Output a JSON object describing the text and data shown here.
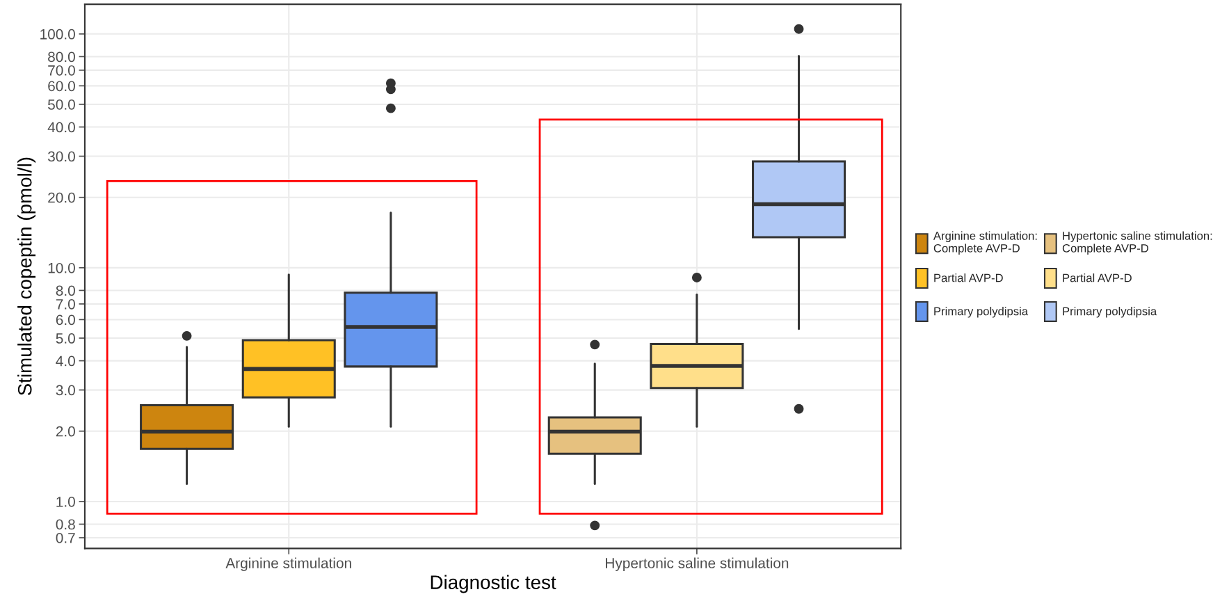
{
  "chart_data": {
    "type": "box",
    "xlabel": "Diagnostic test",
    "ylabel": "Stimulated copeptin (pmol/l)",
    "categories": [
      "Arginine stimulation",
      "Hypertonic saline stimulation"
    ],
    "log": true,
    "ylim": [
      0.63,
      134
    ],
    "yticks": [
      {
        "value": 0.7,
        "label": "0.7"
      },
      {
        "value": 0.8,
        "label": "0.8"
      },
      {
        "value": 1,
        "label": "1.0"
      },
      {
        "value": 2,
        "label": "2.0"
      },
      {
        "value": 3,
        "label": "3.0"
      },
      {
        "value": 4,
        "label": "4.0"
      },
      {
        "value": 5,
        "label": "5.0"
      },
      {
        "value": 6,
        "label": "6.0"
      },
      {
        "value": 7,
        "label": "7.0"
      },
      {
        "value": 8,
        "label": "8.0"
      },
      {
        "value": 10,
        "label": "10.0"
      },
      {
        "value": 20,
        "label": "20.0"
      },
      {
        "value": 30,
        "label": "30.0"
      },
      {
        "value": 40,
        "label": "40.0"
      },
      {
        "value": 50,
        "label": "50.0"
      },
      {
        "value": 60,
        "label": "60.0"
      },
      {
        "value": 70,
        "label": "70.0"
      },
      {
        "value": 80,
        "label": "80.0"
      },
      {
        "value": 100,
        "label": "100.0"
      }
    ],
    "grid": true,
    "legend": "right",
    "series": [
      {
        "name": "Arginine stimulation:\nComplete AVP-D",
        "color": "#cd850f",
        "boxes": [
          {
            "low": 1.19,
            "q1": 1.68,
            "median": 1.99,
            "q3": 2.58,
            "high": 4.58,
            "outliers": [
              5.11
            ]
          },
          null
        ]
      },
      {
        "name": "Partial AVP-D",
        "color": "#ffc125",
        "boxes": [
          {
            "low": 2.09,
            "q1": 2.79,
            "median": 3.69,
            "q3": 4.9,
            "high": 9.35
          },
          null
        ]
      },
      {
        "name": "Primary polydipsia",
        "color": "#6495ed",
        "boxes": [
          {
            "low": 2.09,
            "q1": 3.78,
            "median": 5.58,
            "q3": 7.82,
            "high": 17.2,
            "outliers": [
              48.1,
              58,
              61.5
            ]
          },
          null
        ]
      },
      {
        "name": "Hypertonic saline stimulation:\nComplete AVP-D",
        "color": "#e6c17f",
        "boxes": [
          null,
          {
            "low": 1.19,
            "q1": 1.6,
            "median": 1.99,
            "q3": 2.29,
            "high": 3.89,
            "outliers": [
              0.79,
              4.69
            ]
          }
        ]
      },
      {
        "name": "Partial AVP-D",
        "color": "#ffdf8a",
        "boxes": [
          null,
          {
            "low": 2.09,
            "q1": 3.06,
            "median": 3.8,
            "q3": 4.72,
            "high": 7.67,
            "outliers": [
              9.08
            ]
          }
        ]
      },
      {
        "name": "Primary polydipsia",
        "color": "#b0c8f5",
        "boxes": [
          null,
          {
            "low": 5.48,
            "q1": 13.5,
            "median": 18.7,
            "q3": 28.5,
            "high": 80.5,
            "outliers": [
              2.49,
              105
            ]
          }
        ]
      }
    ]
  }
}
